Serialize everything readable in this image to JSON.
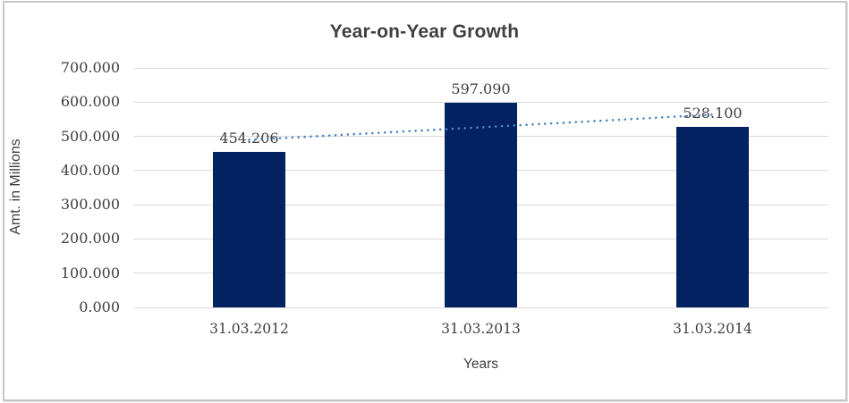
{
  "chart_data": {
    "type": "bar",
    "title": "Year-on-Year Growth",
    "categories": [
      "31.03.2012",
      "31.03.2013",
      "31.03.2014"
    ],
    "values": [
      454.206,
      597.09,
      528.1
    ],
    "value_labels": [
      "454.206",
      "597.090",
      "528.100"
    ],
    "xlabel": "Years",
    "ylabel": "Amt. in Millions",
    "ylim": [
      0,
      700
    ],
    "ytick_step": 100,
    "ytick_labels": [
      "0.000",
      "100.000",
      "200.000",
      "300.000",
      "400.000",
      "500.000",
      "600.000",
      "700.000"
    ],
    "grid": true,
    "legend": "none",
    "colors": {
      "bar": "#022261",
      "trendline": "#4b83c3",
      "gridline": "#d9d9d9",
      "axis_line": "#d9d9d9",
      "text": "#3f3f3f",
      "frame_border": "#c6c6c6"
    },
    "trendline": {
      "type": "linear",
      "style": "dotted"
    }
  }
}
